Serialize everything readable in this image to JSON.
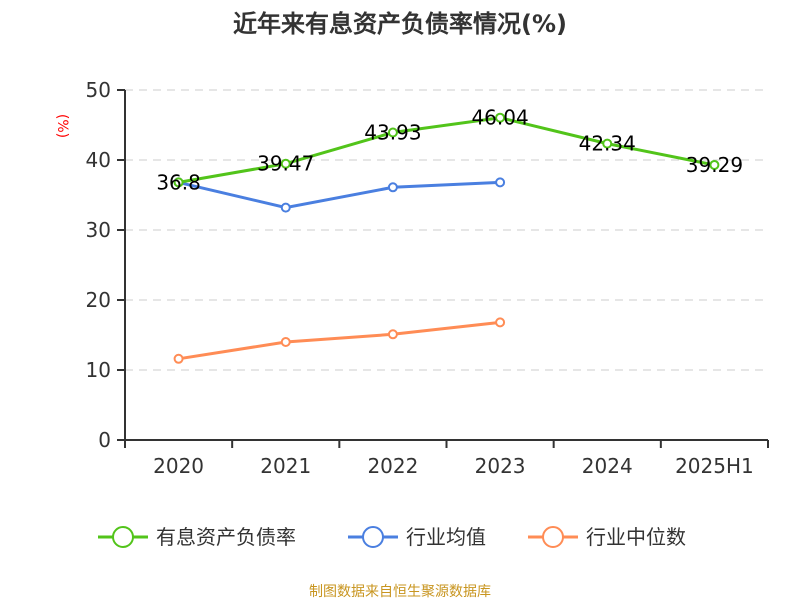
{
  "chart_data": {
    "type": "line",
    "title": "近年来有息资产负债率情况(%)",
    "ylabel": "(%)",
    "xlabel": "",
    "categories": [
      "2020",
      "2021",
      "2022",
      "2023",
      "2024",
      "2025H1"
    ],
    "ylim": [
      0,
      50
    ],
    "yticks": [
      0,
      10,
      20,
      30,
      40,
      50
    ],
    "grid": true,
    "legend_position": "bottom",
    "series": [
      {
        "name": "有息资产负债率",
        "color": "#52c41a",
        "values": [
          36.8,
          39.47,
          43.93,
          46.04,
          42.34,
          39.29
        ],
        "labels": [
          "36.8",
          "39.47",
          "43.93",
          "46.04",
          "42.34",
          "39.29"
        ]
      },
      {
        "name": "行业均值",
        "color": "#4a7fe0",
        "values": [
          36.8,
          33.2,
          36.1,
          36.8,
          null,
          null
        ]
      },
      {
        "name": "行业中位数",
        "color": "#ff8c55",
        "values": [
          11.6,
          14.0,
          15.1,
          16.8,
          null,
          null
        ]
      }
    ],
    "source": "制图数据来自恒生聚源数据库"
  }
}
